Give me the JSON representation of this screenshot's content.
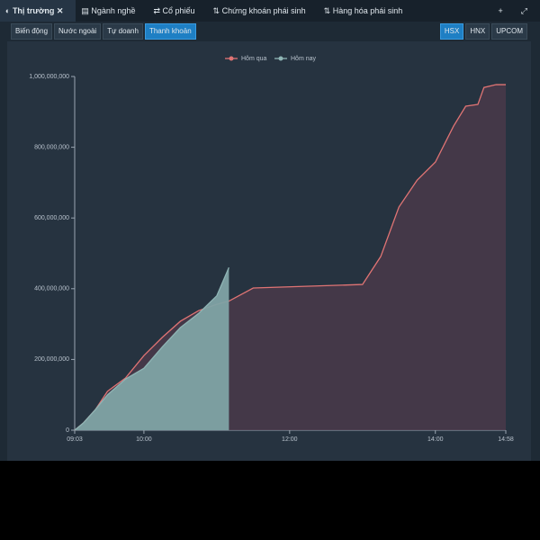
{
  "tabs": [
    "Thị trường",
    "Ngành nghề",
    "Cổ phiếu",
    "Chứng khoán phái sinh",
    "Hàng hóa phái sinh"
  ],
  "filters": [
    "Biến động",
    "Nước ngoài",
    "Tự doanh",
    "Thanh khoản"
  ],
  "exchanges": [
    "HSX",
    "HNX",
    "UPCOM"
  ],
  "chart_data": {
    "type": "area",
    "x": [
      "09:03",
      "09:10",
      "09:20",
      "09:30",
      "09:45",
      "10:00",
      "10:15",
      "10:30",
      "10:45",
      "11:00",
      "11:10",
      "11:30",
      "13:00",
      "13:15",
      "13:30",
      "13:45",
      "14:00",
      "14:15",
      "14:25",
      "14:35",
      "14:40",
      "14:50",
      "14:58"
    ],
    "series": [
      {
        "name": "Hôm qua",
        "color": "#e07474",
        "fill": "#4a3a4a",
        "values": [
          0,
          20000000,
          58000000,
          110000000,
          148000000,
          211000000,
          262000000,
          308000000,
          338000000,
          356000000,
          365000000,
          402000000,
          412000000,
          491000000,
          631000000,
          707000000,
          758000000,
          860000000,
          916000000,
          921000000,
          969000000,
          977000000,
          977000000
        ]
      },
      {
        "name": "Hôm nay",
        "color": "#8fb5b5",
        "fill": "#7fa3a5",
        "values": [
          0,
          20000000,
          58000000,
          100000000,
          145000000,
          175000000,
          235000000,
          290000000,
          330000000,
          380000000,
          460000000,
          null,
          null,
          null,
          null,
          null,
          null,
          null,
          null,
          null,
          null,
          null,
          null
        ]
      }
    ],
    "xlim": [
      "09:03",
      "14:58"
    ],
    "xticks": [
      "09:03",
      "10:00",
      "12:00",
      "14:00",
      "14:58"
    ],
    "ylim": [
      0,
      1000000000
    ],
    "yticks": [
      0,
      {
        "value": 200000000,
        "label": "200,000,000"
      },
      {
        "value": 400000000,
        "label": "400,000,000"
      },
      {
        "value": 600000000,
        "label": "600,000,000"
      },
      {
        "value": 800000000,
        "label": "800,000,000"
      },
      {
        "value": 1000000000,
        "label": "1,000,000,000"
      }
    ],
    "legend": "top"
  }
}
